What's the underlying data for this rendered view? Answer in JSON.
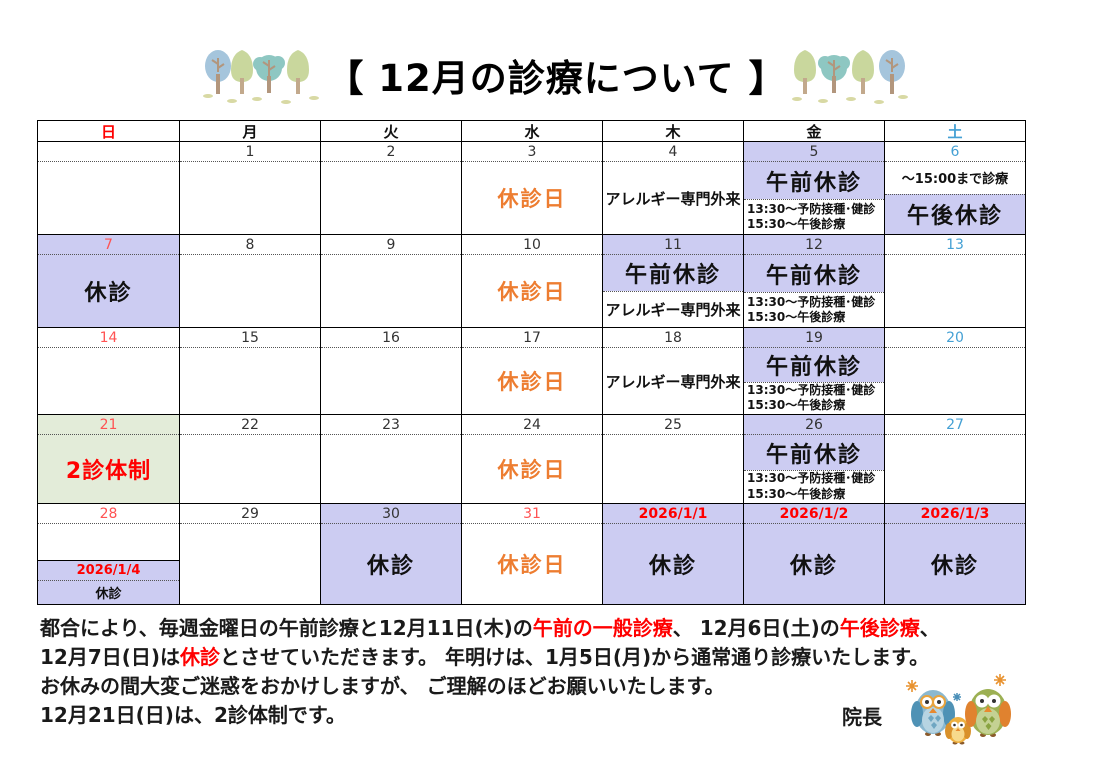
{
  "title": "【 12月の診療について 】",
  "colors": {
    "purple": "#ccccf2",
    "green": "#e3ecd9",
    "red_date": "#ff5353",
    "red": "#ff0000",
    "orange": "#ed7d31",
    "blue": "#44a0d4",
    "black_date": "#333333"
  },
  "calendar": {
    "day_headers": [
      {
        "label": "日",
        "color": "r"
      },
      {
        "label": "月",
        "color": "k"
      },
      {
        "label": "火",
        "color": "k"
      },
      {
        "label": "水",
        "color": "k"
      },
      {
        "label": "木",
        "color": "k"
      },
      {
        "label": "金",
        "color": "k"
      },
      {
        "label": "土",
        "color": "u"
      }
    ],
    "week_heights": [
      92,
      92,
      86,
      88,
      100
    ],
    "weeks": [
      [
        {
          "d": "",
          "secs": []
        },
        {
          "d": "1",
          "secs": []
        },
        {
          "d": "2",
          "secs": []
        },
        {
          "d": "3",
          "secs": [
            {
              "k": "orange",
              "t": "休診日"
            }
          ]
        },
        {
          "d": "4",
          "secs": [
            {
              "k": "allergy",
              "t": "アレルギー専門外来"
            }
          ]
        },
        {
          "d": "5",
          "db": "p",
          "secs": [
            {
              "k": "large",
              "t": "午前休診",
              "bg": "p"
            },
            {
              "k": "small",
              "lines": [
                "13:30～予防接種･健診",
                "15:30～午後診療"
              ],
              "div": true
            }
          ]
        },
        {
          "d": "6",
          "dc": "u",
          "secs": [
            {
              "k": "smallbold",
              "t": "～15:00まで診療"
            },
            {
              "k": "large",
              "t": "午後休診",
              "bg": "p",
              "div": true
            }
          ]
        }
      ],
      [
        {
          "d": "7",
          "dc": "r",
          "bg": "p",
          "secs": [
            {
              "k": "large",
              "t": "休診"
            }
          ]
        },
        {
          "d": "8",
          "secs": []
        },
        {
          "d": "9",
          "secs": []
        },
        {
          "d": "10",
          "secs": [
            {
              "k": "orange",
              "t": "休診日"
            }
          ]
        },
        {
          "d": "11",
          "db": "p",
          "secs": [
            {
              "k": "large",
              "t": "午前休診",
              "bg": "p"
            },
            {
              "k": "allergy",
              "t": "アレルギー専門外来",
              "div": true
            }
          ]
        },
        {
          "d": "12",
          "db": "p",
          "secs": [
            {
              "k": "large",
              "t": "午前休診",
              "bg": "p"
            },
            {
              "k": "small",
              "lines": [
                "13:30～予防接種･健診",
                "15:30～午後診療"
              ],
              "div": true
            }
          ]
        },
        {
          "d": "13",
          "dc": "u",
          "secs": []
        }
      ],
      [
        {
          "d": "14",
          "dc": "r",
          "secs": []
        },
        {
          "d": "15",
          "secs": []
        },
        {
          "d": "16",
          "secs": []
        },
        {
          "d": "17",
          "secs": [
            {
              "k": "orange",
              "t": "休診日"
            }
          ]
        },
        {
          "d": "18",
          "secs": [
            {
              "k": "allergy",
              "t": "アレルギー専門外来"
            }
          ]
        },
        {
          "d": "19",
          "db": "p",
          "secs": [
            {
              "k": "large",
              "t": "午前休診",
              "bg": "p"
            },
            {
              "k": "small",
              "lines": [
                "13:30～予防接種･健診",
                "15:30～午後診療"
              ],
              "div": true
            }
          ]
        },
        {
          "d": "20",
          "dc": "u",
          "secs": []
        }
      ],
      [
        {
          "d": "21",
          "dc": "r",
          "bg": "g",
          "secs": [
            {
              "k": "redlarge",
              "t": "2診体制"
            }
          ]
        },
        {
          "d": "22",
          "secs": []
        },
        {
          "d": "23",
          "secs": []
        },
        {
          "d": "24",
          "secs": [
            {
              "k": "orange",
              "t": "休診日"
            }
          ]
        },
        {
          "d": "25",
          "secs": []
        },
        {
          "d": "26",
          "db": "p",
          "secs": [
            {
              "k": "large",
              "t": "午前休診",
              "bg": "p"
            },
            {
              "k": "small",
              "lines": [
                "13:30～予防接種･健診",
                "15:30～午後診療"
              ],
              "div": true
            }
          ]
        },
        {
          "d": "27",
          "dc": "u",
          "secs": []
        }
      ],
      [
        {
          "d": "28",
          "dc": "r",
          "secs": [],
          "sub": {
            "date": "2026/1/4",
            "label": "休診"
          }
        },
        {
          "d": "29",
          "secs": []
        },
        {
          "d": "30",
          "bg": "p",
          "secs": [
            {
              "k": "large",
              "t": "休診"
            }
          ]
        },
        {
          "d": "31",
          "dc": "r",
          "secs": [
            {
              "k": "orange",
              "t": "休診日"
            }
          ]
        },
        {
          "d": "2026/1/1",
          "dc": "nr",
          "bg": "p",
          "secs": [
            {
              "k": "large",
              "t": "休診"
            }
          ]
        },
        {
          "d": "2026/1/2",
          "dc": "nr",
          "bg": "p",
          "secs": [
            {
              "k": "large",
              "t": "休診"
            }
          ]
        },
        {
          "d": "2026/1/3",
          "dc": "nr",
          "bg": "p",
          "secs": [
            {
              "k": "large",
              "t": "休診"
            }
          ]
        }
      ]
    ]
  },
  "footer": {
    "lines": [
      [
        {
          "t": "都合により、毎週金曜日の午前診療と12月11日(木)の"
        },
        {
          "t": "午前の一般診療",
          "c": "red"
        },
        {
          "t": "、 12月6日(土)の"
        },
        {
          "t": "午後診療",
          "c": "red"
        },
        {
          "t": "、"
        }
      ],
      [
        {
          "t": "12月7日(日)は"
        },
        {
          "t": "休診",
          "c": "red"
        },
        {
          "t": "とさせていただきます。 年明けは、1月5日(月)から通常通り診療いたします。"
        }
      ],
      [
        {
          "t": "お休みの間大変ご迷惑をおかけしますが、 ご理解のほどお願いいたします。"
        }
      ],
      [
        {
          "t": "12月21日(日)は、2診体制です。"
        }
      ]
    ],
    "sign": "院長"
  }
}
